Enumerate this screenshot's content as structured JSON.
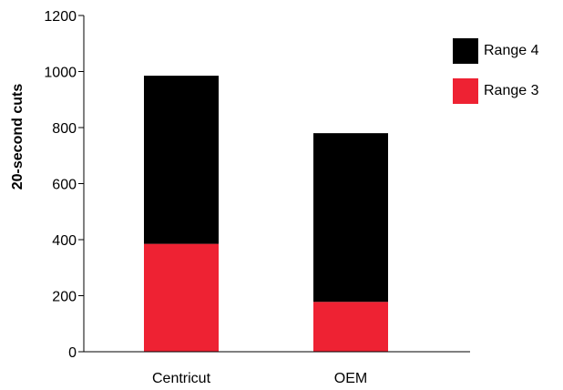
{
  "chart_data": {
    "type": "bar",
    "stacked": true,
    "title": "",
    "xlabel": "",
    "ylabel": "20-second cuts",
    "ylim": [
      0,
      1200
    ],
    "yticks": [
      0,
      200,
      400,
      600,
      800,
      1000,
      1200
    ],
    "categories": [
      "Centricut",
      "OEM"
    ],
    "series": [
      {
        "name": "Range 3",
        "values": [
          385,
          178
        ],
        "color": "#ee2233"
      },
      {
        "name": "Range 4",
        "values": [
          600,
          602
        ],
        "color": "#000000"
      }
    ],
    "grid": false,
    "legend": "top-right",
    "legend_order": [
      "Range 4",
      "Range 3"
    ]
  }
}
